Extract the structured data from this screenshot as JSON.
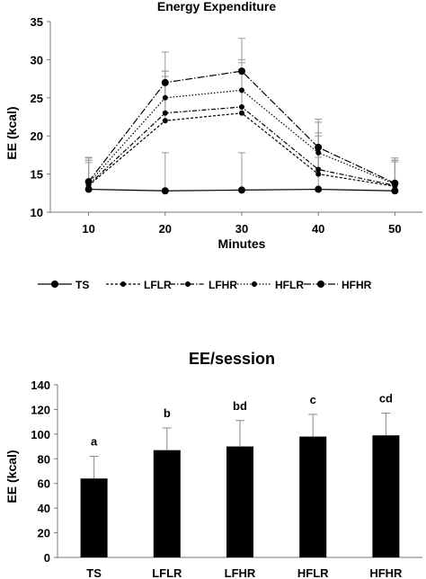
{
  "chart_data": [
    {
      "type": "line",
      "title": "Energy Expenditure",
      "xlabel": "Minutes",
      "ylabel": "EE (kcal)",
      "x": [
        10,
        20,
        30,
        40,
        50
      ],
      "xticks": [
        "10",
        "20",
        "30",
        "40",
        "50"
      ],
      "ylim": [
        10,
        35
      ],
      "yticks": [
        10,
        15,
        20,
        25,
        30,
        35
      ],
      "grid": false,
      "legend_position": "bottom",
      "series": [
        {
          "name": "TS",
          "values": [
            13.0,
            12.8,
            12.9,
            13.0,
            12.8
          ],
          "error": [
            3.8,
            5.0,
            4.9,
            4.2,
            4.0
          ],
          "dash": "",
          "marker": 4
        },
        {
          "name": "LFLR",
          "values": [
            13.5,
            22.0,
            23.0,
            15.0,
            13.4
          ],
          "error": [
            3.0,
            5.8,
            5.5,
            5.0,
            3.2
          ],
          "dash": "3,2",
          "marker": 3
        },
        {
          "name": "LFHR",
          "values": [
            13.6,
            23.0,
            23.8,
            15.6,
            13.5
          ],
          "error": [
            3.2,
            5.5,
            5.8,
            4.8,
            3.3
          ],
          "dash": "5,2,1.5,2",
          "marker": 3
        },
        {
          "name": "HFLR",
          "values": [
            13.8,
            25.0,
            26.0,
            17.8,
            13.7
          ],
          "error": [
            3.3,
            3.5,
            4.0,
            4.0,
            3.4
          ],
          "dash": "1.5,2",
          "marker": 3
        },
        {
          "name": "HFHR",
          "values": [
            14.0,
            27.0,
            28.5,
            18.5,
            13.8
          ],
          "error": [
            3.2,
            4.0,
            4.3,
            3.7,
            3.3
          ],
          "dash": "8,2,1.5,2",
          "marker": 4
        }
      ]
    },
    {
      "type": "bar",
      "title": "EE/session",
      "ylabel": "EE (kcal)",
      "categories": [
        "TS",
        "LFLR",
        "LFHR",
        "HFLR",
        "HFHR"
      ],
      "values": [
        64,
        87,
        90,
        98,
        99
      ],
      "error": [
        18,
        18,
        21,
        18,
        18
      ],
      "letters": [
        "a",
        "b",
        "bd",
        "c",
        "cd"
      ],
      "ylim": [
        0,
        140
      ],
      "yticks": [
        0,
        20,
        40,
        60,
        80,
        100,
        120,
        140
      ],
      "grid": false,
      "bar_color": "#000000"
    }
  ]
}
